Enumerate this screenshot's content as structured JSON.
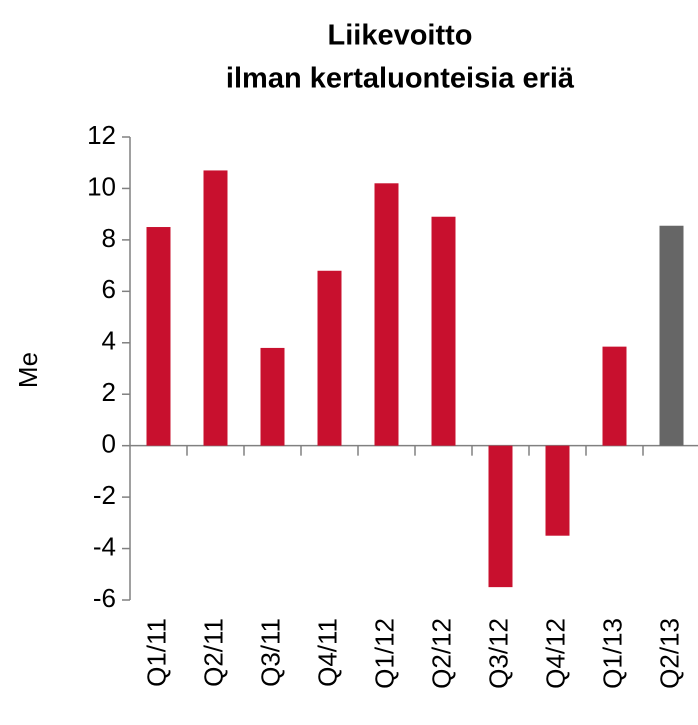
{
  "chart_data": {
    "type": "bar",
    "title": [
      "Liikevoitto",
      "ilman kertaluonteisia eriä"
    ],
    "y_label": "Me",
    "categories": [
      "Q1/11",
      "Q2/11",
      "Q3/11",
      "Q4/11",
      "Q1/12",
      "Q2/12",
      "Q3/12",
      "Q4/12",
      "Q1/13",
      "Q2/13"
    ],
    "values": [
      8.5,
      10.7,
      3.8,
      6.8,
      10.2,
      8.9,
      -5.5,
      -3.5,
      3.85,
      8.55
    ],
    "colors": [
      "#c8102e",
      "#c8102e",
      "#c8102e",
      "#c8102e",
      "#c8102e",
      "#c8102e",
      "#c8102e",
      "#c8102e",
      "#c8102e",
      "#666666"
    ],
    "ylim": [
      -6,
      12
    ],
    "yticks": [
      -6,
      -4,
      -2,
      0,
      2,
      4,
      6,
      8,
      10,
      12
    ],
    "grid": false
  }
}
